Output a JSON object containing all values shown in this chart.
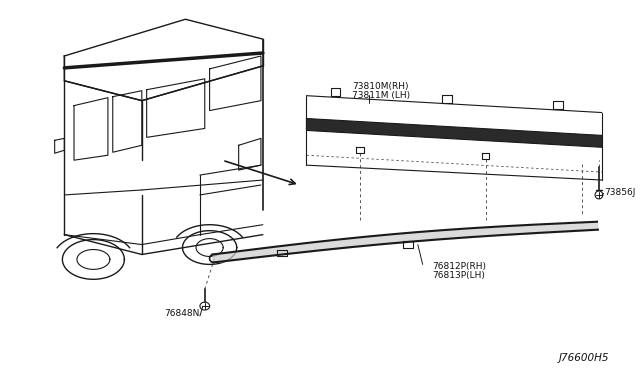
{
  "diagram_id": "J76600H5",
  "background_color": "#ffffff",
  "line_color": "#1a1a1a",
  "dashed_color": "#555555",
  "figsize": [
    6.4,
    3.72
  ],
  "dpi": 100,
  "label_73810": "73810M(RH)",
  "label_73811": "73811M (LH)",
  "label_73856": "73856J",
  "label_76812": "76812P(RH)",
  "label_76813": "76813P(LH)",
  "label_76848": "76848N",
  "diagram_label": "J76600H5"
}
